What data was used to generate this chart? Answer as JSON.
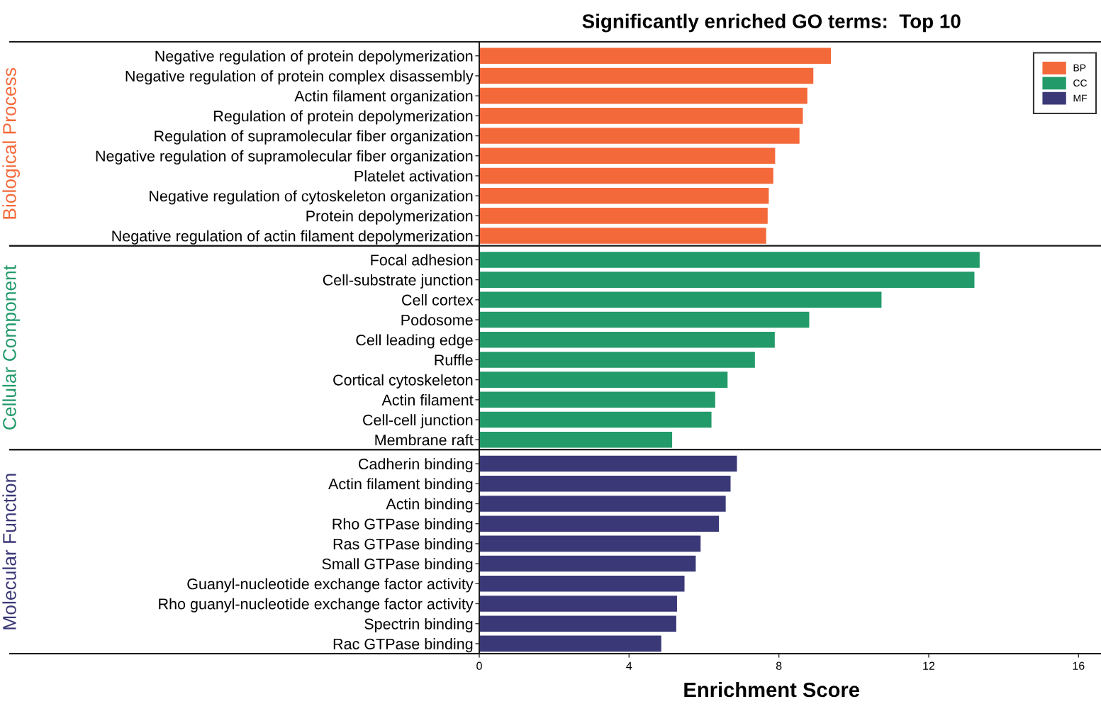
{
  "chart_data": [
    {
      "type": "bar",
      "orientation": "horizontal",
      "title": "Significantly enriched GO terms:  Top 10",
      "ylabel": "Biological Process",
      "categories": [
        "Negative regulation of protein depolymerization",
        "Negative regulation of protein complex disassembly",
        "Actin filament organization",
        "Regulation of protein depolymerization",
        "Regulation of supramolecular fiber organization",
        "Negative regulation of supramolecular fiber organization",
        "Platelet activation",
        "Negative regulation of cytoskeleton organization",
        "Protein depolymerization",
        "Negative regulation of actin filament depolymerization"
      ],
      "series": [
        {
          "name": "BP",
          "color": "#f4693a",
          "values": [
            9.39,
            8.92,
            8.76,
            8.64,
            8.55,
            7.9,
            7.85,
            7.73,
            7.7,
            7.66
          ]
        }
      ],
      "xlim": [
        0,
        16.6
      ],
      "xticks": [
        0,
        4,
        8,
        12,
        16
      ],
      "tick_labels": "y",
      "legend": "top right"
    },
    {
      "type": "bar",
      "orientation": "horizontal",
      "ylabel": "Cellular Component",
      "categories": [
        "Focal adhesion",
        "Cell-substrate junction",
        "Cell cortex",
        "Podosome",
        "Cell leading edge",
        "Ruffle",
        "Cortical cytoskeleton",
        "Actin filament",
        "Cell-cell junction",
        "Membrane raft"
      ],
      "series": [
        {
          "name": "CC",
          "color": "#229a6a",
          "values": [
            13.36,
            13.22,
            10.74,
            8.81,
            7.89,
            7.36,
            6.63,
            6.3,
            6.2,
            5.15
          ]
        }
      ],
      "xlim": [
        0,
        16.6
      ],
      "xticks": [
        0,
        4,
        8,
        12,
        16
      ],
      "tick_labels": "y"
    },
    {
      "type": "bar",
      "orientation": "horizontal",
      "ylabel": "Molecular Function",
      "xlabel": "Enrichment Score",
      "categories": [
        "Cadherin binding",
        "Actin filament binding",
        "Actin binding",
        "Rho GTPase binding",
        "Ras GTPase binding",
        "Small GTPase binding",
        "Guanyl-nucleotide exchange factor activity",
        "Rho guanyl-nucleotide exchange factor activity",
        "Spectrin binding",
        "Rac GTPase binding"
      ],
      "series": [
        {
          "name": "MF",
          "color": "#3a3876",
          "values": [
            6.88,
            6.71,
            6.58,
            6.4,
            5.91,
            5.78,
            5.48,
            5.28,
            5.26,
            4.86
          ]
        }
      ],
      "xlim": [
        0,
        16.6
      ],
      "xticks": [
        0,
        4,
        8,
        12,
        16
      ]
    }
  ]
}
